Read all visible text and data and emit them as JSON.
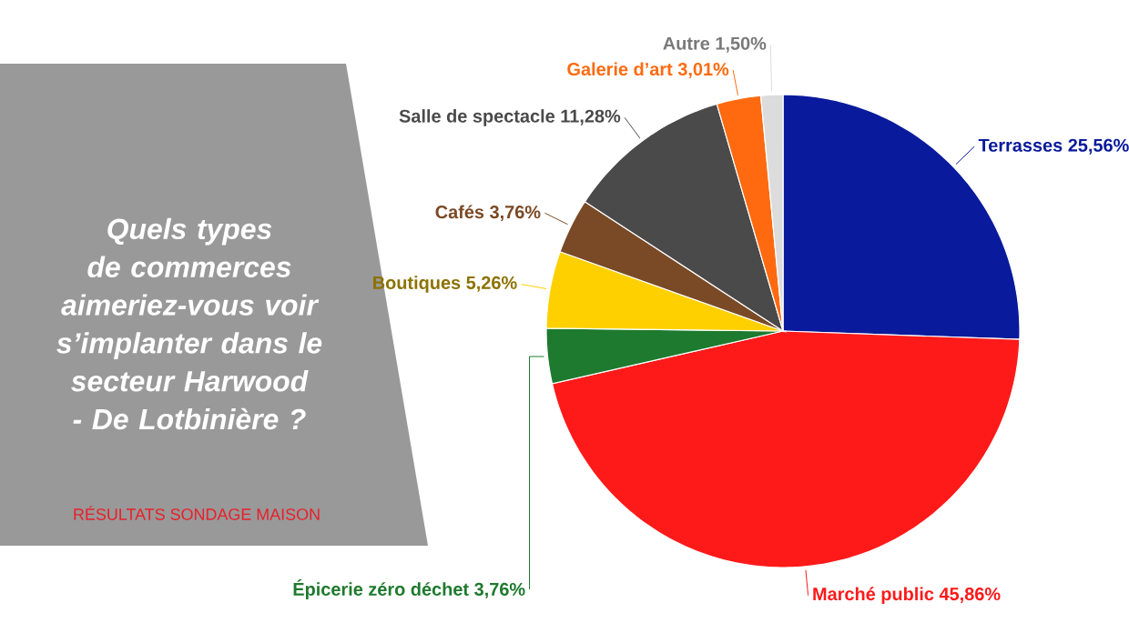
{
  "chart_data": {
    "type": "pie",
    "title": "Quels types de commerces aimeriez-vous voir s’implanter dans le secteur Harwood - De Lotbinière ?",
    "subtitle": "RÉSULTATS SONDAGE MAISON",
    "categories": [
      "Terrasses",
      "Marché public",
      "Épicerie zéro déchet",
      "Boutiques",
      "Cafés",
      "Salle de spectacle",
      "Galerie d’art",
      "Autre"
    ],
    "values": [
      25.56,
      45.86,
      3.76,
      5.26,
      3.76,
      11.28,
      3.01,
      1.5
    ],
    "value_labels": [
      "25,56%",
      "45,86%",
      "3,76%",
      "5,26%",
      "3,76%",
      "11,28%",
      "3,01%",
      "1,50%"
    ],
    "colors": [
      "#0a1a9c",
      "#ff1a1a",
      "#1e7a2e",
      "#ffd000",
      "#7a4a26",
      "#4a4a4a",
      "#ff6a10",
      "#dcdcdc"
    ]
  }
}
